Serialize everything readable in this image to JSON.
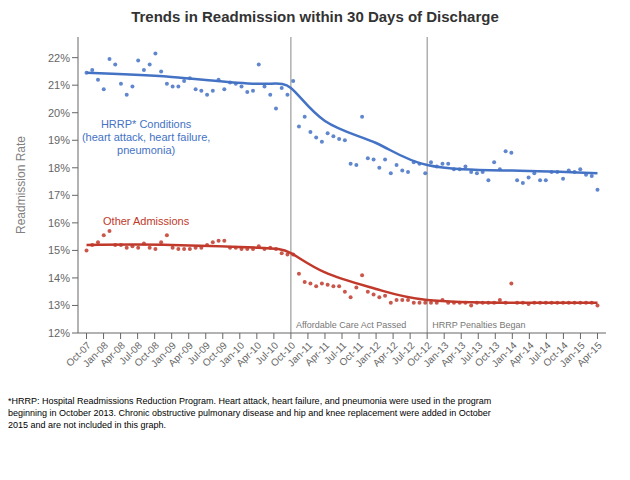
{
  "chart_data": {
    "type": "scatter",
    "title": "Trends in Readmission within 30 Days of Discharge",
    "ylabel": "Readmission Rate",
    "footnote": "*HRRP: Hospital Readmissions Reduction Program. Heart attack, heart failure, and pneumonia were used in the program\nbeginning in October 2013. Chronic obstructive pulmonary disease and hip and knee replacement were added in October\n2015 and are not included in this graph.",
    "grid": false,
    "xlim": [
      -0.5,
      30.5
    ],
    "xticks": [
      {
        "value": 0,
        "label": "Oct-07"
      },
      {
        "value": 1,
        "label": "Jan-08"
      },
      {
        "value": 2,
        "label": "Apr-08"
      },
      {
        "value": 3,
        "label": "Jul-08"
      },
      {
        "value": 4,
        "label": "Oct-08"
      },
      {
        "value": 5,
        "label": "Jan-09"
      },
      {
        "value": 6,
        "label": "Apr-09"
      },
      {
        "value": 7,
        "label": "Jul-09"
      },
      {
        "value": 8,
        "label": "Oct-09"
      },
      {
        "value": 9,
        "label": "Jan-10"
      },
      {
        "value": 10,
        "label": "Apr-10"
      },
      {
        "value": 11,
        "label": "Jul-10"
      },
      {
        "value": 12,
        "label": "Oct-10"
      },
      {
        "value": 13,
        "label": "Jan-11"
      },
      {
        "value": 14,
        "label": "Apr-11"
      },
      {
        "value": 15,
        "label": "Jul-11"
      },
      {
        "value": 16,
        "label": "Oct-11"
      },
      {
        "value": 17,
        "label": "Jan-12"
      },
      {
        "value": 18,
        "label": "Apr-12"
      },
      {
        "value": 19,
        "label": "Jul-12"
      },
      {
        "value": 20,
        "label": "Oct-12"
      },
      {
        "value": 21,
        "label": "Jan-13"
      },
      {
        "value": 22,
        "label": "Apr-13"
      },
      {
        "value": 23,
        "label": "Jul-13"
      },
      {
        "value": 24,
        "label": "Oct-13"
      },
      {
        "value": 25,
        "label": "Jan-14"
      },
      {
        "value": 26,
        "label": "Apr-14"
      },
      {
        "value": 27,
        "label": "Jul-14"
      },
      {
        "value": 28,
        "label": "Oct-14"
      },
      {
        "value": 29,
        "label": "Jan-15"
      },
      {
        "value": 30,
        "label": "Apr-15"
      }
    ],
    "ylim": [
      0.12,
      0.2275
    ],
    "yticks": [
      {
        "value": 0.12,
        "label": "12%"
      },
      {
        "value": 0.13,
        "label": "13%"
      },
      {
        "value": 0.14,
        "label": "14%"
      },
      {
        "value": 0.15,
        "label": "15%"
      },
      {
        "value": 0.16,
        "label": "16%"
      },
      {
        "value": 0.17,
        "label": "17%"
      },
      {
        "value": 0.18,
        "label": "18%"
      },
      {
        "value": 0.19,
        "label": "19%"
      },
      {
        "value": 0.2,
        "label": "20%"
      },
      {
        "value": 0.21,
        "label": "21%"
      },
      {
        "value": 0.22,
        "label": "22%"
      }
    ],
    "series": [
      {
        "type": "scatter",
        "color": "#4472C4",
        "x": [
          0,
          0.3371,
          0.6742,
          1.0112,
          1.3483,
          1.6854,
          2.0225,
          2.3596,
          2.6966,
          3.0337,
          3.3708,
          3.7079,
          4.0449,
          4.382,
          4.7191,
          5.0562,
          5.3933,
          5.7303,
          6.0674,
          6.4045,
          6.7416,
          7.0787,
          7.4157,
          7.7528,
          8.0899,
          8.427,
          8.764,
          9.1011,
          9.4382,
          9.7753,
          10.1124,
          10.4494,
          10.7865,
          11.1236,
          11.4607,
          11.7978,
          12.1348,
          12.4719,
          12.809,
          13.1461,
          13.4831,
          13.8202,
          14.1573,
          14.4944,
          14.8315,
          15.1685,
          15.5056,
          15.8427,
          16.1798,
          16.5169,
          16.8539,
          17.191,
          17.5281,
          17.8652,
          18.2022,
          18.5393,
          18.8764,
          19.2135,
          19.5506,
          19.8876,
          20.2247,
          20.5618,
          20.8989,
          21.236,
          21.573,
          21.9101,
          22.2472,
          22.5843,
          22.9213,
          23.2584,
          23.5955,
          23.9326,
          24.2697,
          24.6067,
          24.9438,
          25.2809,
          25.618,
          25.9551,
          26.2921,
          26.6292,
          26.9663,
          27.3034,
          27.6404,
          27.9775,
          28.3146,
          28.6517,
          28.9888,
          29.3258,
          29.6629,
          30
        ],
        "values": [
          0.2145,
          0.2155,
          0.212,
          0.2085,
          0.2195,
          0.2175,
          0.2105,
          0.2065,
          0.2095,
          0.219,
          0.2155,
          0.2175,
          0.2215,
          0.215,
          0.2105,
          0.2095,
          0.2095,
          0.2115,
          0.2125,
          0.2085,
          0.208,
          0.2065,
          0.208,
          0.212,
          0.2085,
          0.211,
          0.2105,
          0.2095,
          0.2075,
          0.208,
          0.2175,
          0.2095,
          0.2065,
          0.2015,
          0.209,
          0.2065,
          0.2115,
          0.195,
          0.1985,
          0.193,
          0.191,
          0.1895,
          0.1925,
          0.1915,
          0.1905,
          0.19,
          0.1815,
          0.181,
          0.1985,
          0.1835,
          0.183,
          0.18,
          0.183,
          0.178,
          0.181,
          0.179,
          0.1785,
          0.182,
          0.1815,
          0.178,
          0.182,
          0.1805,
          0.1815,
          0.1815,
          0.1795,
          0.1795,
          0.1805,
          0.1785,
          0.178,
          0.1785,
          0.1755,
          0.182,
          0.1795,
          0.186,
          0.1855,
          0.1755,
          0.1745,
          0.1765,
          0.178,
          0.1755,
          0.1755,
          0.1785,
          0.1785,
          0.176,
          0.179,
          0.1785,
          0.1795,
          0.1775,
          0.177,
          0.172
        ]
      },
      {
        "type": "scatter",
        "color": "#C0392B",
        "x": [
          0,
          0.3371,
          0.6742,
          1.0112,
          1.3483,
          1.6854,
          2.0225,
          2.3596,
          2.6966,
          3.0337,
          3.3708,
          3.7079,
          4.0449,
          4.382,
          4.7191,
          5.0562,
          5.3933,
          5.7303,
          6.0674,
          6.4045,
          6.7416,
          7.0787,
          7.4157,
          7.7528,
          8.0899,
          8.427,
          8.764,
          9.1011,
          9.4382,
          9.7753,
          10.1124,
          10.4494,
          10.7865,
          11.1236,
          11.4607,
          11.7978,
          12.1348,
          12.4719,
          12.809,
          13.1461,
          13.4831,
          13.8202,
          14.1573,
          14.4944,
          14.8315,
          15.1685,
          15.5056,
          15.8427,
          16.1798,
          16.5169,
          16.8539,
          17.191,
          17.5281,
          17.8652,
          18.2022,
          18.5393,
          18.8764,
          19.2135,
          19.5506,
          19.8876,
          20.2247,
          20.5618,
          20.8989,
          21.236,
          21.573,
          21.9101,
          22.2472,
          22.5843,
          22.9213,
          23.2584,
          23.5955,
          23.9326,
          24.2697,
          24.6067,
          24.9438,
          25.2809,
          25.618,
          25.9551,
          26.2921,
          26.6292,
          26.9663,
          27.3034,
          27.6404,
          27.9775,
          28.3146,
          28.6517,
          28.9888,
          29.3258,
          29.6629,
          30
        ],
        "values": [
          0.15,
          0.152,
          0.153,
          0.1555,
          0.157,
          0.152,
          0.152,
          0.151,
          0.1515,
          0.151,
          0.1525,
          0.151,
          0.1505,
          0.153,
          0.1555,
          0.151,
          0.1505,
          0.1505,
          0.1505,
          0.151,
          0.151,
          0.152,
          0.153,
          0.1535,
          0.1535,
          0.151,
          0.151,
          0.1505,
          0.1505,
          0.1505,
          0.1515,
          0.1505,
          0.151,
          0.1505,
          0.149,
          0.1485,
          0.1485,
          0.1415,
          0.1385,
          0.138,
          0.137,
          0.138,
          0.1375,
          0.137,
          0.137,
          0.135,
          0.133,
          0.1365,
          0.141,
          0.135,
          0.134,
          0.133,
          0.1335,
          0.131,
          0.132,
          0.132,
          0.132,
          0.131,
          0.131,
          0.131,
          0.131,
          0.131,
          0.132,
          0.131,
          0.131,
          0.131,
          0.131,
          0.13,
          0.131,
          0.131,
          0.131,
          0.131,
          0.132,
          0.131,
          0.138,
          0.131,
          0.131,
          0.1305,
          0.131,
          0.131,
          0.131,
          0.131,
          0.131,
          0.131,
          0.131,
          0.131,
          0.131,
          0.131,
          0.131,
          0.13
        ]
      },
      {
        "type": "line",
        "color": "#4472C4",
        "x": [
          0,
          5,
          10,
          12,
          14,
          17,
          20,
          25,
          30
        ],
        "values": [
          0.2145,
          0.213,
          0.2105,
          0.209,
          0.197,
          0.189,
          0.181,
          0.179,
          0.178
        ]
      },
      {
        "type": "line",
        "color": "#C0392B",
        "x": [
          0,
          5,
          10,
          12,
          14,
          17,
          20,
          25,
          30
        ],
        "values": [
          0.152,
          0.152,
          0.151,
          0.149,
          0.142,
          0.136,
          0.132,
          0.131,
          0.131
        ]
      }
    ],
    "annotations": [
      {
        "type": "vline",
        "x": 12,
        "text": "Affordable Care Act Passed"
      },
      {
        "type": "vline",
        "x": 20,
        "text": "HRRP Penalties Began"
      },
      {
        "type": "text",
        "x": 3.5,
        "y": 0.198,
        "text": "HRRP* Conditions\n(heart attack, heart failure,\npneumonia)",
        "color": "#4472C4"
      },
      {
        "type": "text",
        "x": 3.5,
        "y": 0.163,
        "text": "Other Admissions",
        "color": "#C0392B"
      }
    ]
  }
}
